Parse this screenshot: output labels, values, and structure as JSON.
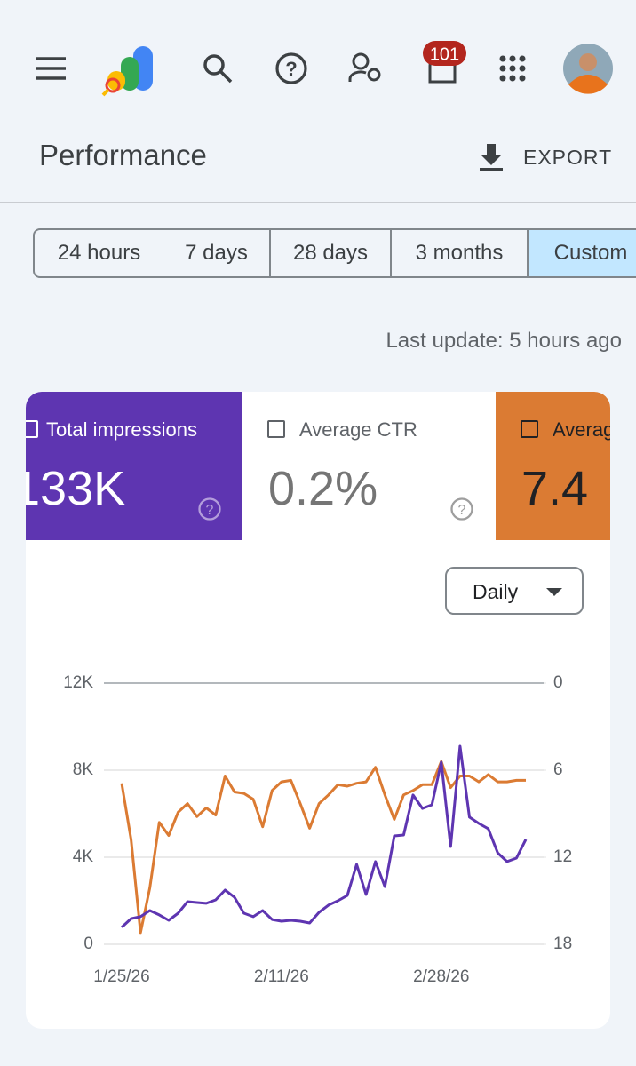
{
  "header": {
    "badge": "101",
    "title": "Performance",
    "export": "EXPORT"
  },
  "tabs": [
    "24 hours",
    "7 days",
    "28 days",
    "3 months",
    "Custom"
  ],
  "last_update": "Last update: 5 hours ago",
  "cards": [
    {
      "value": "133K"
    },
    {
      "label": "Average CTR",
      "value": "0.2%"
    },
    {
      "value": "7.4"
    }
  ],
  "granularity": "Daily",
  "chart_data": {
    "type": "line",
    "categories": [
      "1/25/26",
      null,
      null,
      null,
      null,
      null,
      null,
      null,
      null,
      null,
      null,
      null,
      null,
      null,
      null,
      null,
      null,
      "2/11/26",
      null,
      null,
      null,
      null,
      null,
      null,
      null,
      null,
      null,
      null,
      null,
      null,
      null,
      null,
      null,
      null,
      "2/28/26",
      null,
      null,
      null,
      null,
      null,
      null,
      null,
      null,
      null
    ],
    "series": [
      {
        "name": "Total impressions",
        "color": "#5e35b1",
        "values": [
          780,
          1180,
          1270,
          1550,
          1350,
          1100,
          1430,
          1960,
          1920,
          1880,
          2040,
          2490,
          2160,
          1430,
          1270,
          1550,
          1140,
          1060,
          1100,
          1060,
          980,
          1470,
          1800,
          2000,
          2240,
          3670,
          2290,
          3800,
          2650,
          4980,
          5020,
          6860,
          6240,
          6410,
          8370,
          4490,
          9100,
          5840,
          5550,
          5310,
          4200,
          3800,
          3960,
          4820
        ]
      },
      {
        "name": "Average position",
        "color": "#db7b33",
        "axis": "y2",
        "values": [
          6.9,
          10.8,
          17.2,
          14.1,
          9.6,
          10.5,
          8.9,
          8.3,
          9.2,
          8.6,
          9.1,
          6.4,
          7.5,
          7.6,
          8.0,
          9.9,
          7.4,
          6.8,
          6.7,
          8.3,
          10.0,
          8.3,
          7.7,
          7.0,
          7.1,
          6.9,
          6.8,
          5.8,
          7.7,
          9.4,
          7.7,
          7.4,
          7.0,
          7.0,
          5.4,
          7.2,
          6.4,
          6.4,
          6.8,
          6.3,
          6.8,
          6.8,
          6.7,
          6.7
        ]
      }
    ],
    "ylim": [
      0,
      12000
    ],
    "yticks": [
      0,
      {
        "value": 4000,
        "label": "4K"
      },
      {
        "value": 8000,
        "label": "8K"
      },
      {
        "value": 12000,
        "label": "12K"
      }
    ],
    "y2lim": [
      18,
      0
    ],
    "y2ticks": [
      0,
      6,
      12,
      18
    ],
    "grid": true
  }
}
